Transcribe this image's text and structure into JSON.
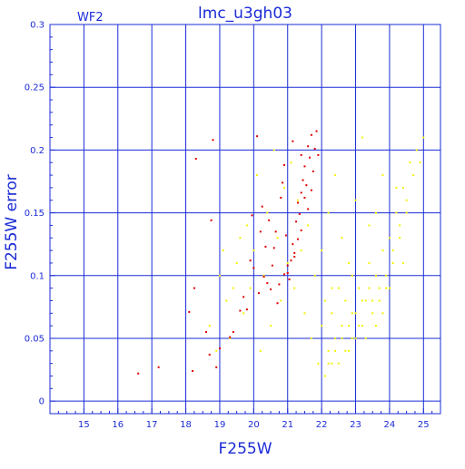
{
  "chart_data": {
    "type": "scatter",
    "title": "lmc_u3gh03",
    "panel_label": "WF2",
    "xlabel": "F255W",
    "ylabel": "F255W error",
    "xlim": [
      14,
      25.5
    ],
    "ylim": [
      -0.01,
      0.3
    ],
    "x_ticks": [
      15,
      16,
      17,
      18,
      19,
      20,
      21,
      22,
      23,
      24,
      25
    ],
    "y_ticks": [
      0,
      0.05,
      0.1,
      0.15,
      0.2,
      0.25,
      0.3
    ],
    "y_tick_labels": [
      "0",
      "0.05",
      "0.1",
      "0.15",
      "0.2",
      "0.25",
      "0.3"
    ],
    "grid": true,
    "colors": {
      "axes": "#1a2bd6",
      "grid": "#1a2bd6",
      "series_red": "#e00000",
      "series_yellow": "#f2f200"
    },
    "series": [
      {
        "color": "#f2f200",
        "values": [
          [
            18.7,
            0.06
          ],
          [
            18.9,
            0.04
          ],
          [
            19.0,
            0.1
          ],
          [
            19.1,
            0.12
          ],
          [
            19.2,
            0.08
          ],
          [
            19.3,
            0.05
          ],
          [
            19.4,
            0.09
          ],
          [
            19.5,
            0.11
          ],
          [
            19.6,
            0.13
          ],
          [
            19.7,
            0.07
          ],
          [
            19.8,
            0.14
          ],
          [
            19.9,
            0.09
          ],
          [
            20.0,
            0.12
          ],
          [
            20.1,
            0.18
          ],
          [
            20.2,
            0.04
          ],
          [
            20.3,
            0.1
          ],
          [
            20.4,
            0.15
          ],
          [
            20.5,
            0.06
          ],
          [
            20.6,
            0.2
          ],
          [
            20.7,
            0.13
          ],
          [
            20.8,
            0.08
          ],
          [
            20.9,
            0.17
          ],
          [
            21.0,
            0.11
          ],
          [
            21.1,
            0.19
          ],
          [
            21.2,
            0.09
          ],
          [
            21.3,
            0.16
          ],
          [
            21.4,
            0.12
          ],
          [
            21.5,
            0.07
          ],
          [
            21.6,
            0.14
          ],
          [
            21.7,
            0.05
          ],
          [
            21.8,
            0.1
          ],
          [
            21.9,
            0.03
          ],
          [
            22.0,
            0.06
          ],
          [
            22.1,
            0.08
          ],
          [
            22.2,
            0.04
          ],
          [
            22.3,
            0.07
          ],
          [
            22.4,
            0.05
          ],
          [
            22.5,
            0.09
          ],
          [
            22.6,
            0.06
          ],
          [
            22.7,
            0.08
          ],
          [
            22.8,
            0.04
          ],
          [
            22.9,
            0.07
          ],
          [
            23.0,
            0.05
          ],
          [
            23.1,
            0.09
          ],
          [
            23.2,
            0.06
          ],
          [
            23.3,
            0.08
          ],
          [
            23.4,
            0.11
          ],
          [
            23.5,
            0.07
          ],
          [
            23.6,
            0.1
          ],
          [
            23.7,
            0.08
          ],
          [
            23.8,
            0.12
          ],
          [
            23.9,
            0.09
          ],
          [
            24.0,
            0.13
          ],
          [
            24.1,
            0.11
          ],
          [
            24.2,
            0.15
          ],
          [
            24.3,
            0.14
          ],
          [
            24.4,
            0.17
          ],
          [
            24.5,
            0.16
          ],
          [
            24.6,
            0.19
          ],
          [
            24.8,
            0.2
          ],
          [
            25.0,
            0.21
          ],
          [
            22.2,
            0.03
          ],
          [
            22.4,
            0.04
          ],
          [
            22.6,
            0.05
          ],
          [
            22.8,
            0.06
          ],
          [
            23.0,
            0.07
          ],
          [
            23.2,
            0.08
          ],
          [
            23.4,
            0.09
          ],
          [
            23.6,
            0.06
          ],
          [
            23.8,
            0.07
          ],
          [
            22.1,
            0.02
          ],
          [
            22.3,
            0.03
          ],
          [
            22.5,
            0.03
          ],
          [
            22.7,
            0.04
          ],
          [
            22.9,
            0.05
          ],
          [
            23.1,
            0.06
          ],
          [
            23.3,
            0.05
          ],
          [
            23.5,
            0.08
          ],
          [
            23.7,
            0.09
          ],
          [
            23.9,
            0.1
          ],
          [
            24.1,
            0.12
          ],
          [
            24.3,
            0.13
          ],
          [
            24.5,
            0.15
          ],
          [
            24.7,
            0.18
          ],
          [
            24.9,
            0.19
          ],
          [
            22.0,
            0.12
          ],
          [
            22.2,
            0.15
          ],
          [
            22.6,
            0.13
          ],
          [
            23.0,
            0.16
          ],
          [
            23.4,
            0.14
          ],
          [
            23.8,
            0.18
          ],
          [
            24.2,
            0.17
          ],
          [
            22.4,
            0.18
          ],
          [
            23.2,
            0.21
          ],
          [
            22.8,
            0.11
          ],
          [
            23.6,
            0.15
          ],
          [
            24.0,
            0.09
          ],
          [
            24.4,
            0.11
          ],
          [
            22.3,
            0.09
          ],
          [
            22.9,
            0.1
          ]
        ]
      },
      {
        "color": "#e00000",
        "values": [
          [
            16.6,
            0.022
          ],
          [
            17.2,
            0.027
          ],
          [
            18.1,
            0.071
          ],
          [
            18.2,
            0.024
          ],
          [
            18.25,
            0.09
          ],
          [
            18.3,
            0.193
          ],
          [
            18.6,
            0.055
          ],
          [
            18.7,
            0.037
          ],
          [
            18.75,
            0.144
          ],
          [
            18.8,
            0.208
          ],
          [
            18.9,
            0.027
          ],
          [
            19.0,
            0.042
          ],
          [
            19.3,
            0.051
          ],
          [
            19.4,
            0.055
          ],
          [
            19.6,
            0.072
          ],
          [
            19.7,
            0.083
          ],
          [
            19.8,
            0.073
          ],
          [
            19.9,
            0.112
          ],
          [
            19.95,
            0.148
          ],
          [
            20.0,
            0.106
          ],
          [
            20.1,
            0.211
          ],
          [
            20.15,
            0.086
          ],
          [
            20.2,
            0.135
          ],
          [
            20.25,
            0.155
          ],
          [
            20.3,
            0.099
          ],
          [
            20.35,
            0.123
          ],
          [
            20.4,
            0.094
          ],
          [
            20.45,
            0.144
          ],
          [
            20.5,
            0.089
          ],
          [
            20.55,
            0.108
          ],
          [
            20.6,
            0.122
          ],
          [
            20.65,
            0.135
          ],
          [
            20.7,
            0.078
          ],
          [
            20.75,
            0.093
          ],
          [
            20.8,
            0.162
          ],
          [
            20.85,
            0.174
          ],
          [
            20.9,
            0.101
          ],
          [
            20.95,
            0.132
          ],
          [
            21.0,
            0.108
          ],
          [
            21.05,
            0.097
          ],
          [
            21.1,
            0.112
          ],
          [
            21.15,
            0.125
          ],
          [
            21.2,
            0.118
          ],
          [
            21.25,
            0.143
          ],
          [
            21.3,
            0.158
          ],
          [
            21.35,
            0.149
          ],
          [
            21.4,
            0.166
          ],
          [
            21.45,
            0.176
          ],
          [
            21.5,
            0.187
          ],
          [
            21.55,
            0.172
          ],
          [
            21.6,
            0.203
          ],
          [
            21.65,
            0.194
          ],
          [
            21.7,
            0.212
          ],
          [
            21.75,
            0.183
          ],
          [
            21.8,
            0.201
          ],
          [
            21.85,
            0.215
          ],
          [
            21.9,
            0.196
          ],
          [
            21.5,
            0.162
          ],
          [
            21.6,
            0.153
          ],
          [
            21.7,
            0.168
          ],
          [
            21.3,
            0.129
          ],
          [
            21.4,
            0.136
          ],
          [
            21.2,
            0.115
          ],
          [
            21.0,
            0.102
          ],
          [
            20.9,
            0.188
          ],
          [
            21.15,
            0.207
          ],
          [
            21.4,
            0.196
          ]
        ]
      }
    ]
  }
}
